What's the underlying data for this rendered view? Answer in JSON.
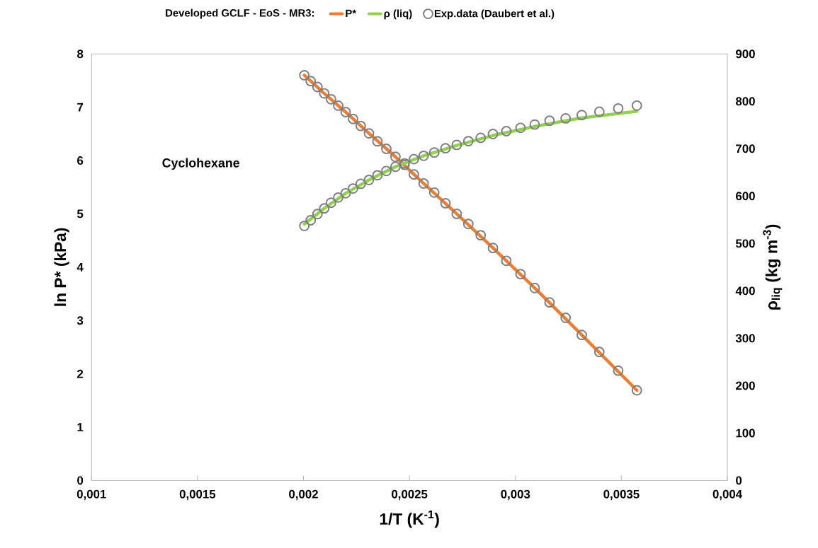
{
  "chart_data": {
    "type": "line",
    "legend_title": "Developed GCLF - EoS - MR3:",
    "xlabel": "1/T (K$^{-1}$)",
    "ylabel": "ln P* (kPa)",
    "y2label": "ρ$_{liq}$ (kg m$^{-3}$)",
    "annotations": [
      "Cyclohexane"
    ],
    "x": [
      0.002004,
      0.002034,
      0.002066,
      0.002098,
      0.00213,
      0.002164,
      0.002199,
      0.002234,
      0.00227,
      0.002309,
      0.002349,
      0.002391,
      0.002434,
      0.002477,
      0.002521,
      0.002567,
      0.002617,
      0.00267,
      0.002723,
      0.002778,
      0.002836,
      0.002894,
      0.002957,
      0.003024,
      0.003091,
      0.003161,
      0.003237,
      0.003313,
      0.003396,
      0.003485,
      0.003573
    ],
    "series": [
      {
        "name": "P*",
        "color": "#ed7d31",
        "marker": "none",
        "line_style": "solid",
        "x": [
          0.002004,
          0.002098,
          0.002199,
          0.002309,
          0.002434,
          0.002567,
          0.002723,
          0.002894,
          0.003091,
          0.003313,
          0.003573
        ],
        "values": [
          7.6,
          7.26,
          6.91,
          6.51,
          6.07,
          5.57,
          5.0,
          4.36,
          3.61,
          2.73,
          1.69
        ]
      },
      {
        "name": "ρ (liq)",
        "axis": "y2",
        "color": "#92d050",
        "marker": "none",
        "line_style": "solid",
        "x": [
          0.002004,
          0.002098,
          0.002199,
          0.002309,
          0.002434,
          0.002567,
          0.002723,
          0.002894,
          0.003091,
          0.003313,
          0.003573
        ],
        "values": [
          541,
          574,
          606,
          634,
          662,
          685,
          707,
          728,
          747,
          765,
          779
        ]
      },
      {
        "name": "Exp.data (Daubert et al.)",
        "type": "scatter",
        "color": "#7f7f7f",
        "marker": "circle",
        "values": [
          7.6,
          7.49,
          7.38,
          7.26,
          7.15,
          7.03,
          6.91,
          6.78,
          6.65,
          6.51,
          6.36,
          6.22,
          6.07,
          5.92,
          5.74,
          5.57,
          5.4,
          5.2,
          5.0,
          4.81,
          4.6,
          4.36,
          4.12,
          3.87,
          3.61,
          3.34,
          3.05,
          2.73,
          2.41,
          2.06,
          1.69
        ]
      },
      {
        "type": "scatter",
        "axis": "y2",
        "color": "#7f7f7f",
        "marker": "circle",
        "values": [
          537,
          549,
          562,
          574,
          586,
          597,
          606,
          616,
          626,
          634,
          644,
          653,
          662,
          669,
          678,
          685,
          692,
          701,
          708,
          716,
          723,
          731,
          737,
          744,
          751,
          759,
          764,
          771,
          778,
          785,
          791
        ]
      }
    ],
    "xlim": [
      0.001,
      0.004
    ],
    "xticks": [
      {
        "value": 0.001,
        "label": "0,001"
      },
      {
        "value": 0.0015,
        "label": "0,0015"
      },
      {
        "value": 0.002,
        "label": "0,002"
      },
      {
        "value": 0.0025,
        "label": "0,0025"
      },
      {
        "value": 0.003,
        "label": "0,003"
      },
      {
        "value": 0.0035,
        "label": "0,0035"
      },
      {
        "value": 0.004,
        "label": "0,004"
      }
    ],
    "ylim": [
      0,
      8
    ],
    "yticks": [
      0,
      1,
      2,
      3,
      4,
      5,
      6,
      7,
      8
    ],
    "y2lim": [
      0,
      900
    ],
    "y2ticks": [
      0,
      100,
      200,
      300,
      400,
      500,
      600,
      700,
      800,
      900
    ],
    "legend": "top"
  }
}
